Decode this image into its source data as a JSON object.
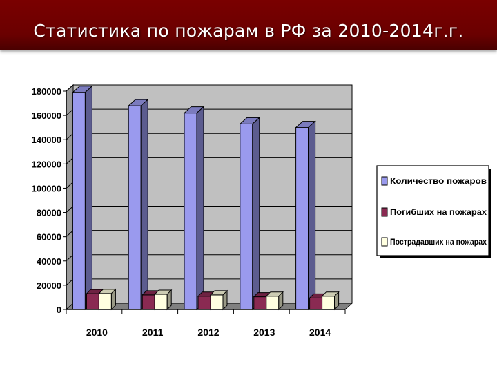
{
  "header": {
    "title": "Статистика по пожарам в РФ за 2010-2014г.г."
  },
  "colors": {
    "title_bg": "#7a0000",
    "plot_bg": "#c0c0c0",
    "series": [
      "#9a9aee",
      "#8a2a52",
      "#ffffe0"
    ]
  },
  "chart_data": {
    "type": "bar",
    "three_d": true,
    "title": "",
    "xlabel": "",
    "ylabel": "",
    "categories": [
      "2010",
      "2011",
      "2012",
      "2013",
      "2014"
    ],
    "series": [
      {
        "name": "Количество пожаров",
        "values": [
          179000,
          168000,
          162000,
          153000,
          150000
        ]
      },
      {
        "name": "Погибших на пожарах",
        "values": [
          13000,
          12000,
          11000,
          10500,
          9500
        ]
      },
      {
        "name": "Пострадавших на пожарах",
        "values": [
          13200,
          12500,
          12000,
          11000,
          11000
        ]
      }
    ],
    "ylim": [
      0,
      180000
    ],
    "yticks": [
      "0",
      "20000",
      "40000",
      "60000",
      "80000",
      "100000",
      "120000",
      "140000",
      "160000",
      "180000"
    ],
    "grid": true,
    "legend_position": "right"
  }
}
